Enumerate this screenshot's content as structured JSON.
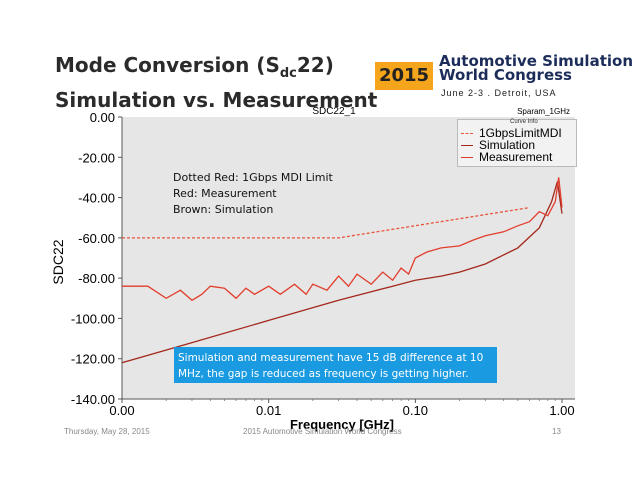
{
  "slide": {
    "title_line1_pre": "Mode Conversion (S",
    "title_line1_sub": "dc",
    "title_line1_post": "22)",
    "title_line2": "Simulation vs. Measurement"
  },
  "logo": {
    "year": "2015",
    "line1": "Automotive Simulation",
    "line2": "World Congress",
    "date": "June 2-3 . Detroit, USA"
  },
  "footer": {
    "date": "Thursday, May 28, 2015",
    "event": "2015 Automotive Simulation World Congress",
    "page": "13"
  },
  "annotations": {
    "line1": "Dotted Red: 1Gbps MDI Limit",
    "line2": "Red: Measurement",
    "line3": "Brown: Simulation",
    "note": "Simulation and measurement have 15 dB difference at 10 MHz, the gap is reduced as frequency is getting higher."
  },
  "colors": {
    "limit": "#e8543c",
    "simulation": "#a3281c",
    "measurement": "#e23d2c",
    "note_bg": "#1a9ae0"
  },
  "chart_data": {
    "type": "line",
    "title": "SDC22_1",
    "plot_name": "Sparam_1GHz",
    "legend_header": "Curve Info",
    "xlabel": "Frequency [GHz]",
    "ylabel": "SDC22",
    "xscale": "log",
    "xlim": [
      0.001,
      1.0
    ],
    "ylim": [
      -140,
      0
    ],
    "xticks": [
      0.001,
      0.01,
      0.1,
      1.0
    ],
    "xtick_labels": [
      "0.00",
      "0.01",
      "0.10",
      "1.00"
    ],
    "yticks": [
      0,
      -20,
      -40,
      -60,
      -80,
      -100,
      -120,
      -140
    ],
    "ytick_labels": [
      "0.00",
      "-20.00",
      "-40.00",
      "-60.00",
      "-80.00",
      "-100.00",
      "-120.00",
      "-140.00"
    ],
    "legend_position": "top-right",
    "series": [
      {
        "name": "1GbpsLimitMDI",
        "style": "dotted",
        "x": [
          0.001,
          0.03,
          0.6
        ],
        "y": [
          -60,
          -60,
          -45
        ]
      },
      {
        "name": "Simulation",
        "style": "solid",
        "x": [
          0.001,
          0.003,
          0.01,
          0.03,
          0.07,
          0.1,
          0.15,
          0.2,
          0.3,
          0.5,
          0.7,
          0.85,
          0.93,
          1.0
        ],
        "y": [
          -122,
          -112,
          -101,
          -91,
          -84,
          -81,
          -79,
          -77,
          -73,
          -65,
          -55,
          -42,
          -32,
          -48
        ]
      },
      {
        "name": "Measurement",
        "style": "solid",
        "x": [
          0.001,
          0.0015,
          0.002,
          0.0025,
          0.003,
          0.0035,
          0.004,
          0.005,
          0.006,
          0.007,
          0.008,
          0.01,
          0.012,
          0.015,
          0.018,
          0.02,
          0.025,
          0.03,
          0.035,
          0.04,
          0.05,
          0.06,
          0.07,
          0.08,
          0.09,
          0.1,
          0.12,
          0.15,
          0.2,
          0.25,
          0.3,
          0.4,
          0.5,
          0.6,
          0.7,
          0.8,
          0.9,
          0.95,
          1.0
        ],
        "y": [
          -84,
          -84,
          -90,
          -86,
          -91,
          -88,
          -84,
          -85,
          -90,
          -85,
          -88,
          -84,
          -88,
          -83,
          -88,
          -83,
          -86,
          -79,
          -84,
          -78,
          -83,
          -77,
          -81,
          -75,
          -78,
          -70,
          -67,
          -65,
          -64,
          -61,
          -59,
          -57,
          -54,
          -52,
          -47,
          -49,
          -42,
          -30,
          -45
        ]
      }
    ]
  }
}
